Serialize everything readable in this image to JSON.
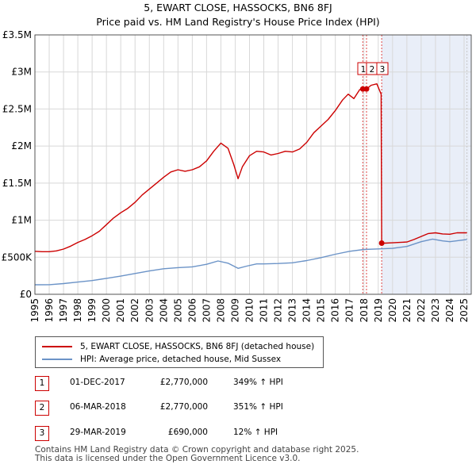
{
  "chart_data": {
    "type": "line",
    "title": "5, EWART CLOSE, HASSOCKS, BN6 8FJ",
    "subtitle": "Price paid vs. HM Land Registry's House Price Index (HPI)",
    "xlim": [
      1995,
      2025.5
    ],
    "ylim": [
      0,
      3500000
    ],
    "y_ticks": [
      {
        "value": 0,
        "label": "£0"
      },
      {
        "value": 500000,
        "label": "£500K"
      },
      {
        "value": 1000000,
        "label": "£1M"
      },
      {
        "value": 1500000,
        "label": "£1.5M"
      },
      {
        "value": 2000000,
        "label": "£2M"
      },
      {
        "value": 2500000,
        "label": "£2.5M"
      },
      {
        "value": 3000000,
        "label": "£3M"
      },
      {
        "value": 3500000,
        "label": "£3.5M"
      }
    ],
    "x_ticks": [
      "1995",
      "1996",
      "1997",
      "1998",
      "1999",
      "2000",
      "2001",
      "2002",
      "2003",
      "2004",
      "2005",
      "2006",
      "2007",
      "2008",
      "2009",
      "2010",
      "2011",
      "2012",
      "2013",
      "2014",
      "2015",
      "2016",
      "2017",
      "2018",
      "2019",
      "2020",
      "2021",
      "2022",
      "2023",
      "2024",
      "2025"
    ],
    "shade_region": [
      2019.24,
      2025.5
    ],
    "series": [
      {
        "name": "5, EWART CLOSE, HASSOCKS, BN6 8FJ (detached house)",
        "color": "#cc0000",
        "points": [
          [
            1995.0,
            580000
          ],
          [
            1995.5,
            575000
          ],
          [
            1996.0,
            575000
          ],
          [
            1996.5,
            585000
          ],
          [
            1997.0,
            610000
          ],
          [
            1997.5,
            650000
          ],
          [
            1998.0,
            700000
          ],
          [
            1998.5,
            740000
          ],
          [
            1999.0,
            790000
          ],
          [
            1999.5,
            850000
          ],
          [
            2000.0,
            940000
          ],
          [
            2000.5,
            1030000
          ],
          [
            2001.0,
            1100000
          ],
          [
            2001.5,
            1160000
          ],
          [
            2002.0,
            1240000
          ],
          [
            2002.5,
            1340000
          ],
          [
            2003.0,
            1420000
          ],
          [
            2003.5,
            1500000
          ],
          [
            2004.0,
            1580000
          ],
          [
            2004.5,
            1650000
          ],
          [
            2005.0,
            1680000
          ],
          [
            2005.5,
            1660000
          ],
          [
            2006.0,
            1680000
          ],
          [
            2006.5,
            1720000
          ],
          [
            2007.0,
            1800000
          ],
          [
            2007.5,
            1930000
          ],
          [
            2008.0,
            2040000
          ],
          [
            2008.5,
            1970000
          ],
          [
            2008.9,
            1750000
          ],
          [
            2009.2,
            1560000
          ],
          [
            2009.5,
            1720000
          ],
          [
            2010.0,
            1870000
          ],
          [
            2010.5,
            1930000
          ],
          [
            2011.0,
            1920000
          ],
          [
            2011.5,
            1880000
          ],
          [
            2012.0,
            1900000
          ],
          [
            2012.5,
            1930000
          ],
          [
            2013.0,
            1920000
          ],
          [
            2013.5,
            1960000
          ],
          [
            2014.0,
            2050000
          ],
          [
            2014.5,
            2180000
          ],
          [
            2015.0,
            2270000
          ],
          [
            2015.5,
            2360000
          ],
          [
            2016.0,
            2480000
          ],
          [
            2016.5,
            2620000
          ],
          [
            2016.9,
            2700000
          ],
          [
            2017.3,
            2640000
          ],
          [
            2017.7,
            2760000
          ],
          [
            2017.92,
            2770000
          ],
          [
            2018.18,
            2770000
          ],
          [
            2018.5,
            2820000
          ],
          [
            2018.9,
            2840000
          ],
          [
            2019.2,
            2700000
          ],
          [
            2019.24,
            690000
          ],
          [
            2019.5,
            690000
          ],
          [
            2020.0,
            695000
          ],
          [
            2020.5,
            700000
          ],
          [
            2021.0,
            705000
          ],
          [
            2021.5,
            740000
          ],
          [
            2022.0,
            780000
          ],
          [
            2022.5,
            820000
          ],
          [
            2023.0,
            830000
          ],
          [
            2023.5,
            815000
          ],
          [
            2024.0,
            810000
          ],
          [
            2024.5,
            830000
          ],
          [
            2025.2,
            830000
          ]
        ]
      },
      {
        "name": "HPI: Average price, detached house, Mid Sussex",
        "color": "#6b93c7",
        "points": [
          [
            1995.0,
            128000
          ],
          [
            1996.0,
            130000
          ],
          [
            1997.0,
            145000
          ],
          [
            1998.0,
            165000
          ],
          [
            1999.0,
            185000
          ],
          [
            2000.0,
            215000
          ],
          [
            2001.0,
            245000
          ],
          [
            2002.0,
            280000
          ],
          [
            2003.0,
            315000
          ],
          [
            2004.0,
            345000
          ],
          [
            2005.0,
            360000
          ],
          [
            2006.0,
            370000
          ],
          [
            2007.0,
            405000
          ],
          [
            2007.8,
            450000
          ],
          [
            2008.5,
            420000
          ],
          [
            2009.2,
            350000
          ],
          [
            2009.8,
            380000
          ],
          [
            2010.5,
            410000
          ],
          [
            2011.0,
            410000
          ],
          [
            2012.0,
            415000
          ],
          [
            2013.0,
            425000
          ],
          [
            2014.0,
            455000
          ],
          [
            2015.0,
            495000
          ],
          [
            2016.0,
            540000
          ],
          [
            2017.0,
            580000
          ],
          [
            2018.0,
            605000
          ],
          [
            2019.0,
            612000
          ],
          [
            2020.0,
            620000
          ],
          [
            2021.0,
            645000
          ],
          [
            2022.0,
            710000
          ],
          [
            2022.8,
            745000
          ],
          [
            2023.5,
            720000
          ],
          [
            2024.0,
            710000
          ],
          [
            2025.2,
            740000
          ]
        ]
      }
    ],
    "transactions": [
      {
        "n": "1",
        "x": 2017.92,
        "price": 2770000
      },
      {
        "n": "2",
        "x": 2018.18,
        "price": 2770000
      },
      {
        "n": "3",
        "x": 2019.24,
        "price": 690000
      }
    ]
  },
  "legend": {
    "property_label": "5, EWART CLOSE, HASSOCKS, BN6 8FJ (detached house)",
    "hpi_label": "HPI: Average price, detached house, Mid Sussex"
  },
  "transactions_table": [
    {
      "n": "1",
      "date": "01-DEC-2017",
      "price": "£2,770,000",
      "hpi": "349% ↑ HPI"
    },
    {
      "n": "2",
      "date": "06-MAR-2018",
      "price": "£2,770,000",
      "hpi": "351% ↑ HPI"
    },
    {
      "n": "3",
      "date": "29-MAR-2019",
      "price": "£690,000",
      "hpi": "12% ↑ HPI"
    }
  ],
  "footer": {
    "line1": "Contains HM Land Registry data © Crown copyright and database right 2025.",
    "line2": "This data is licensed under the Open Government Licence v3.0."
  }
}
